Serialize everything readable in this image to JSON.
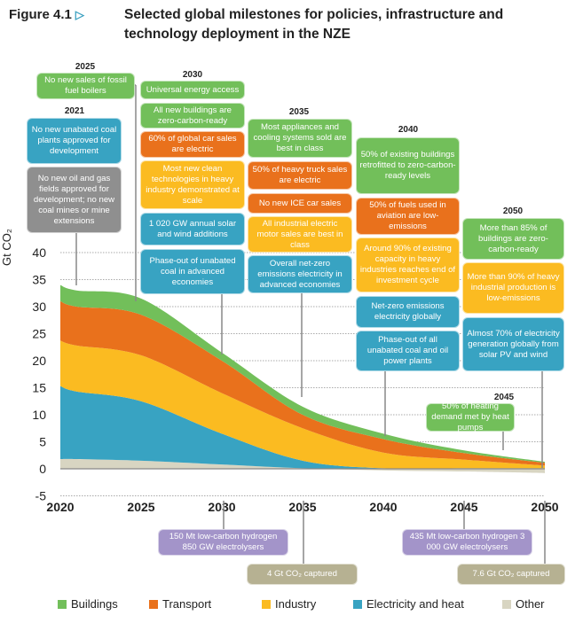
{
  "header": {
    "figure_label": "Figure 4.1",
    "figure_icon": "triangle-right-icon",
    "title": "Selected global milestones for policies, infrastructure and technology deployment in the NZE"
  },
  "colors": {
    "Buildings": "#72bf5a",
    "Transport": "#e9711c",
    "Industry": "#fbbb21",
    "Electricity and heat": "#38a3c2",
    "Other": "#d8d5c2",
    "Fossil": "#8f8f8f",
    "Hydrogen": "#a394c9",
    "CCUS": "#b6b192"
  },
  "milestones": [
    {
      "year": "2021",
      "items": [
        {
          "text": "No new unabated coal plants approved for development",
          "sector": "Electricity and heat"
        },
        {
          "text": "No new oil and gas fields approved for development; no new coal mines or mine extensions",
          "sector": "Fossil"
        }
      ]
    },
    {
      "year": "2025",
      "items": [
        {
          "text": "No new sales of fossil fuel boilers",
          "sector": "Buildings"
        }
      ]
    },
    {
      "year": "2030",
      "items": [
        {
          "text": "Universal energy access",
          "sector": "Buildings"
        },
        {
          "text": "All new buildings are zero-carbon-ready",
          "sector": "Buildings"
        },
        {
          "text": "60% of global car sales are electric",
          "sector": "Transport"
        },
        {
          "text": "Most new clean technologies in heavy industry demonstrated at scale",
          "sector": "Industry"
        },
        {
          "text": "1 020 GW annual solar and wind additions",
          "sector": "Electricity and heat"
        },
        {
          "text": "Phase-out of unabated coal in advanced economies",
          "sector": "Electricity and heat"
        }
      ]
    },
    {
      "year": "2035",
      "items": [
        {
          "text": "Most appliances and cooling systems sold are best in class",
          "sector": "Buildings"
        },
        {
          "text": "50% of heavy truck sales are electric",
          "sector": "Transport"
        },
        {
          "text": "No new ICE car sales",
          "sector": "Transport"
        },
        {
          "text": "All industrial electric motor sales are best in class",
          "sector": "Industry"
        },
        {
          "text": "Overall net-zero emissions electricity in advanced economies",
          "sector": "Electricity and heat"
        }
      ]
    },
    {
      "year": "2040",
      "items": [
        {
          "text": "50% of existing buildings retrofitted to zero-carbon-ready levels",
          "sector": "Buildings"
        },
        {
          "text": "50% of fuels used in aviation are low-emissions",
          "sector": "Transport"
        },
        {
          "text": "Around 90% of existing capacity in heavy industries reaches end of investment cycle",
          "sector": "Industry"
        },
        {
          "text": "Net-zero emissions electricity globally",
          "sector": "Electricity and heat"
        },
        {
          "text": "Phase-out of all unabated coal and oil power plants",
          "sector": "Electricity and heat"
        }
      ]
    },
    {
      "year": "2045",
      "items": [
        {
          "text": "50% of heating demand met by heat pumps",
          "sector": "Buildings"
        }
      ]
    },
    {
      "year": "2050",
      "items": [
        {
          "text": "More than 85% of buildings are zero-carbon-ready",
          "sector": "Buildings"
        },
        {
          "text": "More than 90% of heavy industrial production is low-emissions",
          "sector": "Industry"
        },
        {
          "text": "Almost 70% of electricity generation globally from solar PV and wind",
          "sector": "Electricity and heat"
        }
      ]
    }
  ],
  "below_axis": [
    {
      "year": "2030",
      "text": "150 Mt low-carbon hydrogen 850 GW electrolysers",
      "sector": "Hydrogen"
    },
    {
      "year": "2035",
      "text": "4 Gt CO₂ captured",
      "sector": "CCUS"
    },
    {
      "year": "2045",
      "text": "435 Mt low-carbon hydrogen 3 000 GW electrolysers",
      "sector": "Hydrogen"
    },
    {
      "year": "2050",
      "text": "7.6 Gt CO₂ captured",
      "sector": "CCUS"
    }
  ],
  "chart_data": {
    "type": "area",
    "title": "Selected global milestones for policies, infrastructure and technology deployment in the NZE",
    "xlabel": "",
    "ylabel": "Gt CO₂",
    "x": [
      2020,
      2021,
      2025,
      2030,
      2035,
      2040,
      2045,
      2050
    ],
    "xticks": [
      "2020",
      "2025",
      "2030",
      "2035",
      "2040",
      "2045",
      "2050"
    ],
    "yticks": [
      "-5",
      "0",
      "5",
      "10",
      "15",
      "20",
      "25",
      "30",
      "35",
      "40"
    ],
    "ylim": [
      -5,
      40
    ],
    "grid": true,
    "legend_position": "bottom",
    "stacked": true,
    "series": [
      {
        "name": "Other",
        "values": [
          1.8,
          1.8,
          1.5,
          0.8,
          0.1,
          -0.3,
          -0.5,
          -0.8
        ]
      },
      {
        "name": "Electricity and heat",
        "values": [
          13.5,
          12.5,
          11,
          5.7,
          1.4,
          0.1,
          0.1,
          0.1
        ]
      },
      {
        "name": "Industry",
        "values": [
          8.4,
          8.5,
          8.5,
          7.5,
          6,
          2.9,
          1.6,
          0.5
        ]
      },
      {
        "name": "Transport",
        "values": [
          7.3,
          7.2,
          7.5,
          6,
          2.5,
          2.5,
          1.2,
          0.5
        ]
      },
      {
        "name": "Buildings",
        "values": [
          3,
          3,
          3,
          1.5,
          1.5,
          1,
          0.5,
          0.2
        ]
      }
    ],
    "legend": [
      "Buildings",
      "Transport",
      "Industry",
      "Electricity and heat",
      "Other"
    ]
  }
}
